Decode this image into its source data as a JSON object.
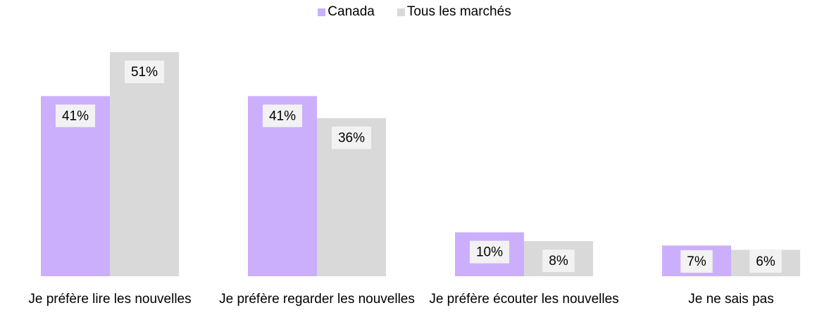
{
  "chart_data": {
    "type": "bar",
    "categories": [
      "Je préfère lire les nouvelles",
      "Je préfère regarder les nouvelles",
      "Je préfère écouter les nouvelles",
      "Je ne sais pas"
    ],
    "series": [
      {
        "name": "Canada",
        "color": "#ccaffc",
        "values": [
          41,
          41,
          10,
          7
        ],
        "value_labels": [
          "41%",
          "41%",
          "10%",
          "7%"
        ]
      },
      {
        "name": "Tous les marchés",
        "color": "#d9d9d9",
        "values": [
          51,
          36,
          8,
          6
        ],
        "value_labels": [
          "51%",
          "36%",
          "8%",
          "6%"
        ]
      }
    ],
    "legend": "top"
  }
}
